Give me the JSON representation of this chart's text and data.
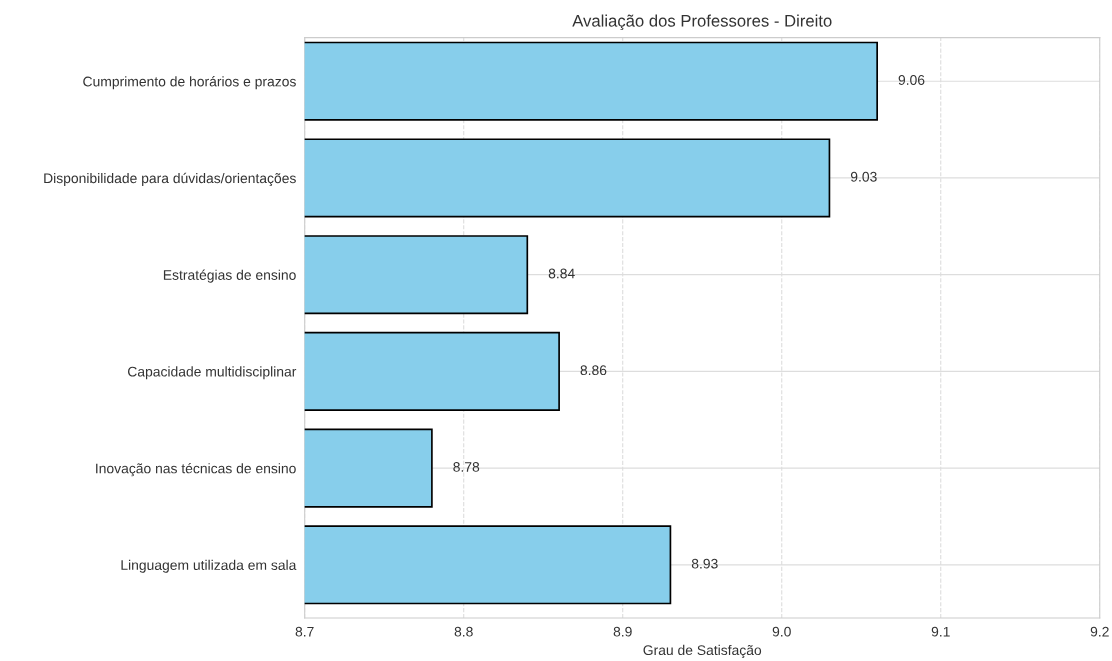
{
  "chart_data": {
    "type": "bar",
    "orientation": "horizontal",
    "title": "Avaliação dos Professores - Direito",
    "xlabel": "Grau de Satisfação",
    "categories": [
      "Cumprimento de horários e prazos",
      "Disponibilidade para dúvidas/orientações",
      "Estratégias de ensino",
      "Capacidade multidisciplinar",
      "Inovação nas técnicas de ensino",
      "Linguagem utilizada em sala"
    ],
    "values": [
      9.06,
      9.03,
      8.84,
      8.86,
      8.78,
      8.93
    ],
    "color": "#87ceeb",
    "xlim": [
      8.7,
      9.2
    ],
    "xticks": [
      {
        "value": 8.7,
        "label": "8.7"
      },
      {
        "value": 8.8,
        "label": "8.8"
      },
      {
        "value": 8.9,
        "label": "8.9"
      },
      {
        "value": 9.0,
        "label": "9.0"
      },
      {
        "value": 9.1,
        "label": "9.1"
      },
      {
        "value": 9.2,
        "label": "9.2"
      }
    ],
    "grid": true,
    "data_labels": true
  }
}
